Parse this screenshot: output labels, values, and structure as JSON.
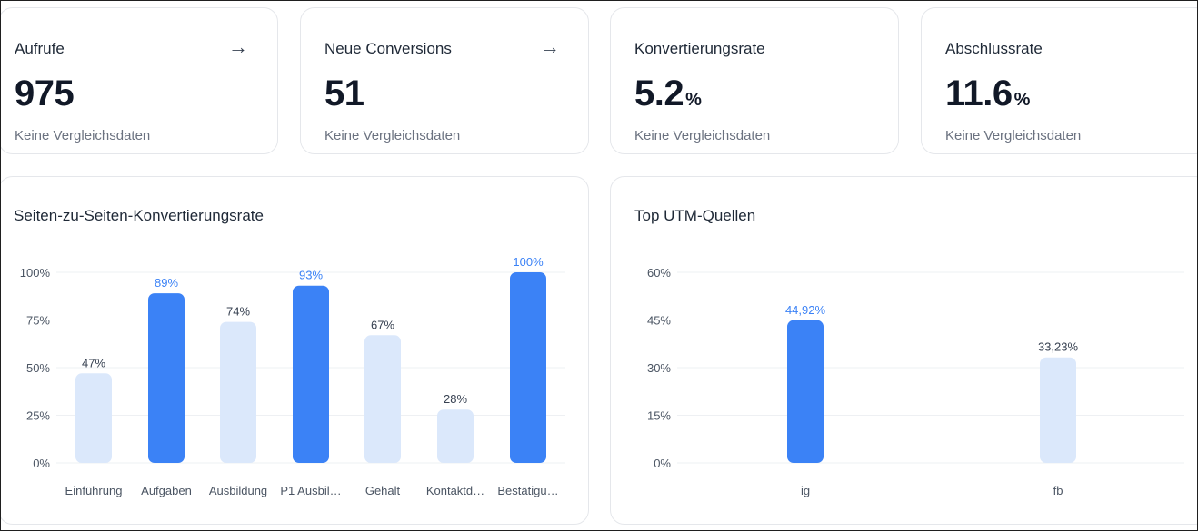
{
  "stats": [
    {
      "title": "Aufrufe",
      "value": "975",
      "unit": "",
      "sub": "Keine Vergleichsdaten",
      "arrow": "→"
    },
    {
      "title": "Neue Conversions",
      "value": "51",
      "unit": "",
      "sub": "Keine Vergleichsdaten",
      "arrow": "→"
    },
    {
      "title": "Konvertierungsrate",
      "value": "5.2",
      "unit": "%",
      "sub": "Keine Vergleichsdaten",
      "arrow": ""
    },
    {
      "title": "Abschlussrate",
      "value": "11.6",
      "unit": "%",
      "sub": "Keine Vergleichsdaten",
      "arrow": ""
    }
  ],
  "colors": {
    "primary": "#3b82f6",
    "light": "#dbe8fb",
    "label_primary": "#3b82f6",
    "label_default": "#374151",
    "axis": "#4b5563",
    "grid": "#eef0f3"
  },
  "chart_data": [
    {
      "type": "bar",
      "title": "Seiten-zu-Seiten-Konvertierungsrate",
      "categories": [
        "Einführung",
        "Aufgaben",
        "Ausbildung",
        "P1 Ausbil…",
        "Gehalt",
        "Kontaktd…",
        "Bestätigu…"
      ],
      "values": [
        47,
        89,
        74,
        93,
        67,
        28,
        100
      ],
      "value_labels": [
        "47%",
        "89%",
        "74%",
        "93%",
        "67%",
        "28%",
        "100%"
      ],
      "highlight": [
        false,
        true,
        false,
        true,
        false,
        false,
        true
      ],
      "yticks": [
        "0%",
        "25%",
        "50%",
        "75%",
        "100%"
      ],
      "ylim": [
        0,
        100
      ],
      "xlabel": "",
      "ylabel": ""
    },
    {
      "type": "bar",
      "title": "Top UTM-Quellen",
      "categories": [
        "ig",
        "fb"
      ],
      "values": [
        44.92,
        33.23
      ],
      "value_labels": [
        "44,92%",
        "33,23%"
      ],
      "highlight": [
        true,
        false
      ],
      "yticks": [
        "0%",
        "15%",
        "30%",
        "45%",
        "60%"
      ],
      "ylim": [
        0,
        60
      ],
      "xlabel": "",
      "ylabel": ""
    }
  ]
}
